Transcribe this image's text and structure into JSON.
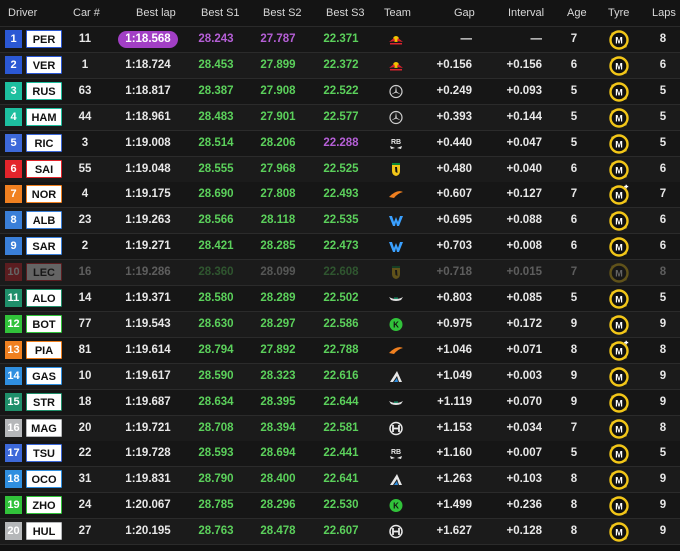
{
  "colors": {
    "highlight_lap": "#a23fc5",
    "personal_best": "#5bd05b",
    "overall_best": "#b55fd6",
    "medium_tyre": "#f2c618"
  },
  "header": {
    "driver": "Driver",
    "car": "Car #",
    "best_lap": "Best lap",
    "best_s1": "Best S1",
    "best_s2": "Best S2",
    "best_s3": "Best S3",
    "team": "Team",
    "gap": "Gap",
    "interval": "Interval",
    "age": "Age",
    "tyre": "Tyre",
    "laps": "Laps"
  },
  "rows": [
    {
      "pos": "1",
      "code": "PER",
      "color": "#2b58d4",
      "car": "11",
      "lap": "1:18.568",
      "lap_best": true,
      "s1": "28.243",
      "s1c": "p",
      "s2": "27.787",
      "s2c": "p",
      "s3": "22.371",
      "s3c": "g",
      "team": "redbull-logo",
      "gap": "—",
      "interval": "—",
      "age": "7",
      "tyre": "medium-used",
      "laps": "8"
    },
    {
      "pos": "2",
      "code": "VER",
      "color": "#2b58d4",
      "car": "1",
      "lap": "1:18.724",
      "s1": "28.453",
      "s1c": "g",
      "s2": "27.899",
      "s2c": "g",
      "s3": "22.372",
      "s3c": "g",
      "team": "redbull-logo",
      "gap": "+0.156",
      "interval": "+0.156",
      "age": "6",
      "tyre": "medium-used",
      "laps": "6"
    },
    {
      "pos": "3",
      "code": "RUS",
      "color": "#1dbf9f",
      "car": "63",
      "lap": "1:18.817",
      "s1": "28.387",
      "s1c": "g",
      "s2": "27.908",
      "s2c": "g",
      "s3": "22.522",
      "s3c": "g",
      "team": "mercedes-logo",
      "gap": "+0.249",
      "interval": "+0.093",
      "age": "5",
      "tyre": "medium-used",
      "laps": "5"
    },
    {
      "pos": "4",
      "code": "HAM",
      "color": "#1dbf9f",
      "car": "44",
      "lap": "1:18.961",
      "s1": "28.483",
      "s1c": "g",
      "s2": "27.901",
      "s2c": "g",
      "s3": "22.577",
      "s3c": "g",
      "team": "mercedes-logo",
      "gap": "+0.393",
      "interval": "+0.144",
      "age": "5",
      "tyre": "medium-used",
      "laps": "5"
    },
    {
      "pos": "5",
      "code": "RIC",
      "color": "#3d69d9",
      "car": "3",
      "lap": "1:19.008",
      "s1": "28.514",
      "s1c": "g",
      "s2": "28.206",
      "s2c": "g",
      "s3": "22.288",
      "s3c": "p",
      "team": "rb-logo",
      "gap": "+0.440",
      "interval": "+0.047",
      "age": "5",
      "tyre": "medium-used",
      "laps": "5"
    },
    {
      "pos": "6",
      "code": "SAI",
      "color": "#e3242b",
      "car": "55",
      "lap": "1:19.048",
      "s1": "28.555",
      "s1c": "g",
      "s2": "27.968",
      "s2c": "g",
      "s3": "22.525",
      "s3c": "g",
      "team": "ferrari-logo",
      "gap": "+0.480",
      "interval": "+0.040",
      "age": "6",
      "tyre": "medium-used",
      "laps": "6"
    },
    {
      "pos": "7",
      "code": "NOR",
      "color": "#f08020",
      "car": "4",
      "lap": "1:19.175",
      "s1": "28.690",
      "s1c": "g",
      "s2": "27.808",
      "s2c": "g",
      "s3": "22.493",
      "s3c": "g",
      "team": "mclaren-logo",
      "gap": "+0.607",
      "interval": "+0.127",
      "age": "7",
      "tyre": "medium-new",
      "laps": "7"
    },
    {
      "pos": "8",
      "code": "ALB",
      "color": "#3a7fd8",
      "car": "23",
      "lap": "1:19.263",
      "s1": "28.566",
      "s1c": "g",
      "s2": "28.118",
      "s2c": "g",
      "s3": "22.535",
      "s3c": "g",
      "team": "williams-logo",
      "gap": "+0.695",
      "interval": "+0.088",
      "age": "6",
      "tyre": "medium-used",
      "laps": "6"
    },
    {
      "pos": "9",
      "code": "SAR",
      "color": "#3a7fd8",
      "car": "2",
      "lap": "1:19.271",
      "s1": "28.421",
      "s1c": "g",
      "s2": "28.285",
      "s2c": "g",
      "s3": "22.473",
      "s3c": "g",
      "team": "williams-logo",
      "gap": "+0.703",
      "interval": "+0.008",
      "age": "6",
      "tyre": "medium-used",
      "laps": "6"
    },
    {
      "pos": "10",
      "code": "LEC",
      "color": "#e3242b",
      "car": "16",
      "lap": "1:19.286",
      "s1": "28.360",
      "s1c": "g",
      "s2": "28.099",
      "s2c": "y",
      "s3": "22.608",
      "s3c": "g",
      "team": "ferrari-logo",
      "gap": "+0.718",
      "interval": "+0.015",
      "age": "7",
      "tyre": "medium-used",
      "laps": "8",
      "dim": true
    },
    {
      "pos": "11",
      "code": "ALO",
      "color": "#1f8f6a",
      "car": "14",
      "lap": "1:19.371",
      "s1": "28.580",
      "s1c": "g",
      "s2": "28.289",
      "s2c": "g",
      "s3": "22.502",
      "s3c": "g",
      "team": "aston-martin-logo",
      "gap": "+0.803",
      "interval": "+0.085",
      "age": "5",
      "tyre": "medium-used",
      "laps": "5"
    },
    {
      "pos": "12",
      "code": "BOT",
      "color": "#31c23a",
      "car": "77",
      "lap": "1:19.543",
      "s1": "28.630",
      "s1c": "g",
      "s2": "28.297",
      "s2c": "g",
      "s3": "22.586",
      "s3c": "g",
      "team": "sauber-logo",
      "gap": "+0.975",
      "interval": "+0.172",
      "age": "9",
      "tyre": "medium-used",
      "laps": "9"
    },
    {
      "pos": "13",
      "code": "PIA",
      "color": "#f08020",
      "car": "81",
      "lap": "1:19.614",
      "s1": "28.794",
      "s1c": "g",
      "s2": "27.892",
      "s2c": "g",
      "s3": "22.788",
      "s3c": "g",
      "team": "mclaren-logo",
      "gap": "+1.046",
      "interval": "+0.071",
      "age": "8",
      "tyre": "medium-new",
      "laps": "8"
    },
    {
      "pos": "14",
      "code": "GAS",
      "color": "#2f8fe0",
      "car": "10",
      "lap": "1:19.617",
      "s1": "28.590",
      "s1c": "g",
      "s2": "28.323",
      "s2c": "g",
      "s3": "22.616",
      "s3c": "g",
      "team": "alpine-logo",
      "gap": "+1.049",
      "interval": "+0.003",
      "age": "9",
      "tyre": "medium-used",
      "laps": "9"
    },
    {
      "pos": "15",
      "code": "STR",
      "color": "#1f8f6a",
      "car": "18",
      "lap": "1:19.687",
      "s1": "28.634",
      "s1c": "g",
      "s2": "28.395",
      "s2c": "g",
      "s3": "22.644",
      "s3c": "g",
      "team": "aston-martin-logo",
      "gap": "+1.119",
      "interval": "+0.070",
      "age": "9",
      "tyre": "medium-used",
      "laps": "9"
    },
    {
      "pos": "16",
      "code": "MAG",
      "color": "#b5b7b9",
      "car": "20",
      "lap": "1:19.721",
      "s1": "28.708",
      "s1c": "g",
      "s2": "28.394",
      "s2c": "g",
      "s3": "22.581",
      "s3c": "g",
      "team": "haas-logo",
      "gap": "+1.153",
      "interval": "+0.034",
      "age": "7",
      "tyre": "medium-used",
      "laps": "8"
    },
    {
      "pos": "17",
      "code": "TSU",
      "color": "#3d69d9",
      "car": "22",
      "lap": "1:19.728",
      "s1": "28.593",
      "s1c": "g",
      "s2": "28.694",
      "s2c": "g",
      "s3": "22.441",
      "s3c": "g",
      "team": "rb-logo",
      "gap": "+1.160",
      "interval": "+0.007",
      "age": "5",
      "tyre": "medium-used",
      "laps": "5"
    },
    {
      "pos": "18",
      "code": "OCO",
      "color": "#2f8fe0",
      "car": "31",
      "lap": "1:19.831",
      "s1": "28.790",
      "s1c": "g",
      "s2": "28.400",
      "s2c": "g",
      "s3": "22.641",
      "s3c": "g",
      "team": "alpine-logo",
      "gap": "+1.263",
      "interval": "+0.103",
      "age": "8",
      "tyre": "medium-used",
      "laps": "9"
    },
    {
      "pos": "19",
      "code": "ZHO",
      "color": "#31c23a",
      "car": "24",
      "lap": "1:20.067",
      "s1": "28.785",
      "s1c": "g",
      "s2": "28.296",
      "s2c": "g",
      "s3": "22.530",
      "s3c": "g",
      "team": "sauber-logo",
      "gap": "+1.499",
      "interval": "+0.236",
      "age": "8",
      "tyre": "medium-used",
      "laps": "9"
    },
    {
      "pos": "20",
      "code": "HUL",
      "color": "#b5b7b9",
      "car": "27",
      "lap": "1:20.195",
      "s1": "28.763",
      "s1c": "g",
      "s2": "28.478",
      "s2c": "g",
      "s3": "22.607",
      "s3c": "g",
      "team": "haas-logo",
      "gap": "+1.627",
      "interval": "+0.128",
      "age": "8",
      "tyre": "medium-used",
      "laps": "9"
    }
  ]
}
